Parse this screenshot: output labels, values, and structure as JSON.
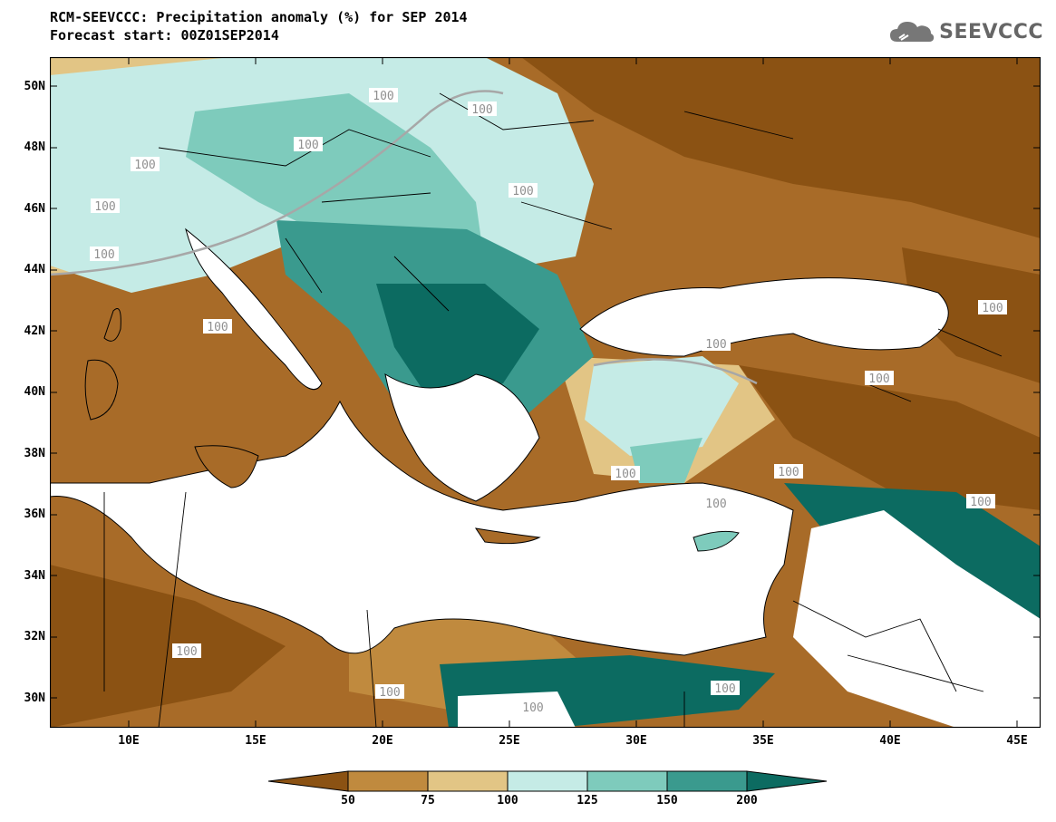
{
  "title": {
    "line1": "RCM-SEEVCCC: Precipitation anomaly (%) for SEP 2014",
    "line2": "Forecast start: 00Z01SEP2014"
  },
  "logo": {
    "text": "SEEVCCC",
    "icon": "cloud-icon"
  },
  "map": {
    "lat_labels": [
      "50N",
      "48N",
      "46N",
      "44N",
      "42N",
      "40N",
      "38N",
      "36N",
      "34N",
      "32N",
      "30N"
    ],
    "lon_labels": [
      "10E",
      "15E",
      "20E",
      "25E",
      "30E",
      "35E",
      "40E",
      "45E"
    ],
    "contour_label": "100"
  },
  "colorbar": {
    "labels": [
      "50",
      "75",
      "100",
      "125",
      "150",
      "200"
    ],
    "colors": [
      "#8b5213",
      "#c08a3e",
      "#e2c585",
      "#c5ebe6",
      "#7ecbbc",
      "#3a9a8e",
      "#0c6b61"
    ]
  }
}
